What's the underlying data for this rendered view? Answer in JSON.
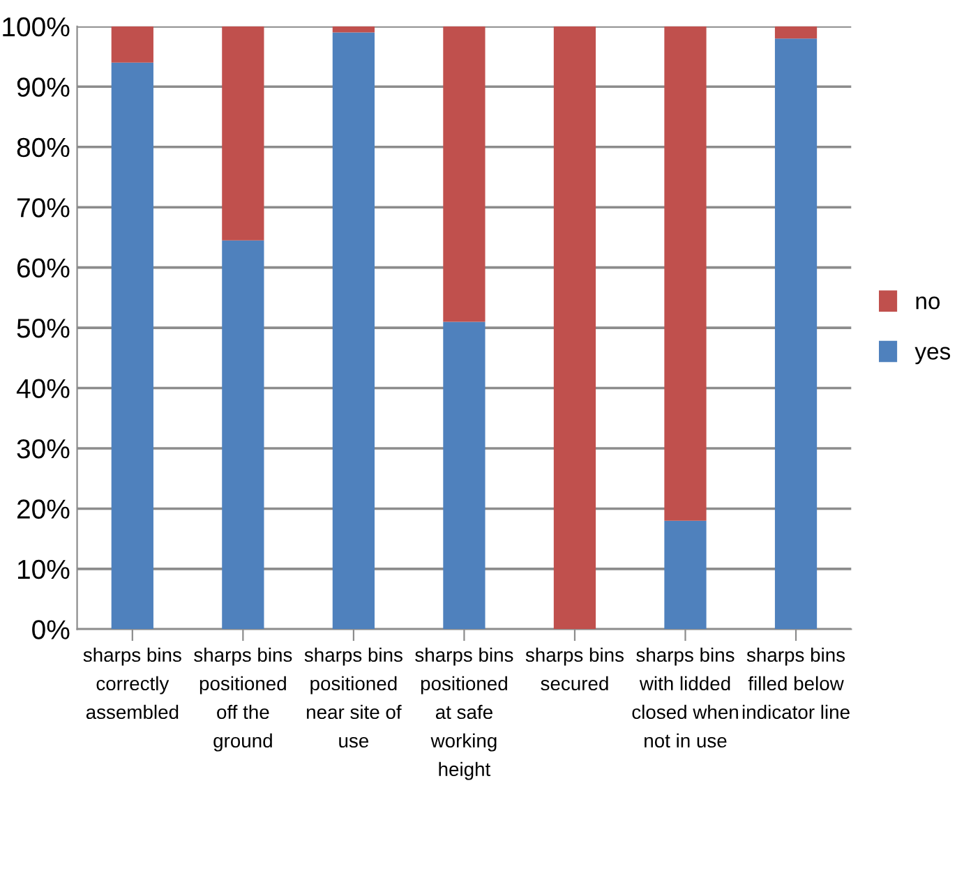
{
  "chart_data": {
    "type": "bar",
    "stacked": true,
    "categories": [
      "sharps bins\ncorrectly\nassembled",
      "sharps bins\npositioned\noff the\nground",
      "sharps bins\npositioned\nnear site of\nuse",
      "sharps bins\npositioned\nat safe\nworking\nheight",
      "sharps bins\nsecured",
      "sharps bins\nwith lidded\nclosed when\nnot in use",
      "sharps bins\nfilled below\nindicator line"
    ],
    "series": [
      {
        "name": "yes",
        "color": "#4f81bd",
        "values": [
          94,
          64.5,
          99,
          51,
          0,
          18,
          98
        ]
      },
      {
        "name": "no",
        "color": "#c0504d",
        "values": [
          6,
          35.5,
          1,
          49,
          100,
          82,
          2
        ]
      }
    ],
    "ylim": [
      0,
      100
    ],
    "yticks": [
      {
        "value": 0,
        "label": "0%"
      },
      {
        "value": 10,
        "label": "10%"
      },
      {
        "value": 20,
        "label": "20%"
      },
      {
        "value": 30,
        "label": "30%"
      },
      {
        "value": 40,
        "label": "40%"
      },
      {
        "value": 50,
        "label": "50%"
      },
      {
        "value": 60,
        "label": "60%"
      },
      {
        "value": 70,
        "label": "70%"
      },
      {
        "value": 80,
        "label": "80%"
      },
      {
        "value": 90,
        "label": "90%"
      },
      {
        "value": 100,
        "label": "100%"
      }
    ],
    "grid": "y",
    "legend": "right"
  }
}
